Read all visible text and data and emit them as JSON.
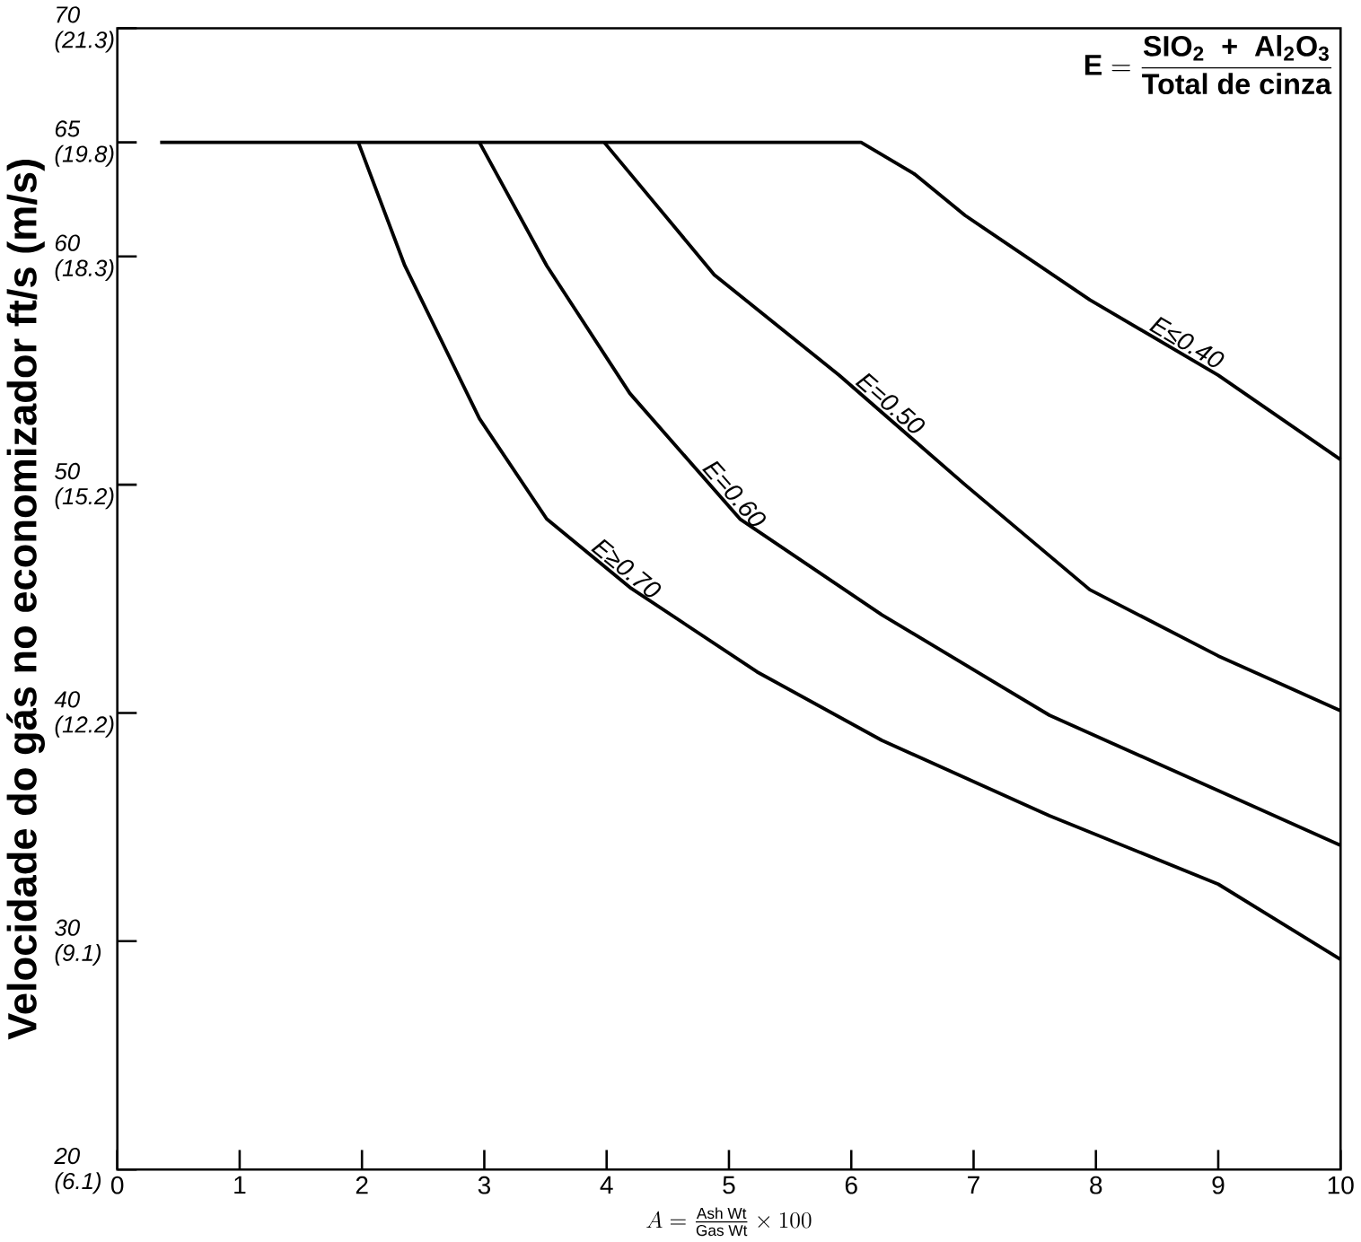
{
  "chart_data": {
    "type": "line",
    "ylabel": "Velocidade do gás no economizador ft/s (m/s)",
    "xlabel": "A = \\frac{\\text{Ash Wt}}{\\text{Gas Wt}} \\times 100",
    "annotations": [
      "\\textbf{E} = \\frac{\\textbf{SIO}_{\\textbf{2}}\\ \\ \\textbf{+}\\ \\ \\textbf{Al}_{\\textbf{2}}\\textbf{O}_{\\textbf{3}}}{\\textbf{Total de cinza}}"
    ],
    "xlim": [
      0,
      10
    ],
    "xticks": [
      0,
      1,
      2,
      3,
      4,
      5,
      6,
      7,
      8,
      9,
      10
    ],
    "ylim": [
      20,
      70
    ],
    "yticks": [
      20,
      30,
      40,
      50,
      60,
      65,
      70
    ],
    "y2lim": [
      6.096,
      21.336
    ],
    "y2ticks": [
      {
        "value": 6.096,
        "label": "(6.1)"
      },
      {
        "value": 9.144,
        "label": "(9.1)"
      },
      {
        "value": 12.192,
        "label": "(12.2)"
      },
      {
        "value": 15.24,
        "label": "(15.2)"
      },
      {
        "value": 18.288,
        "label": "(18.3)"
      },
      {
        "value": 19.812,
        "label": "(19.8)"
      },
      {
        "value": 21.336,
        "label": "(21.3)"
      }
    ],
    "line_style": "solid",
    "series": [
      {
        "name": "E≤0.40",
        "color": "#000000",
        "x": [
          0.35,
          6.08,
          6.52,
          6.93,
          7.95,
          9.0,
          10.0
        ],
        "values": [
          65,
          65,
          63.6,
          61.8,
          58.1,
          54.8,
          51.1
        ]
      },
      {
        "name": "E=0.50",
        "color": "#000000",
        "x": [
          3.98,
          4.88,
          5.9,
          6.93,
          7.95,
          9.0,
          10.0
        ],
        "values": [
          65,
          59.2,
          54.8,
          50.0,
          45.4,
          42.5,
          40.1
        ]
      },
      {
        "name": "E=0.60",
        "color": "#000000",
        "x": [
          2.96,
          3.51,
          4.19,
          5.09,
          6.25,
          7.62,
          9.0,
          10.0
        ],
        "values": [
          65,
          59.6,
          54.0,
          48.5,
          44.3,
          39.9,
          36.6,
          34.2
        ]
      },
      {
        "name": "E≥0.70",
        "color": "#000000",
        "x": [
          1.97,
          2.35,
          2.96,
          3.51,
          4.19,
          5.23,
          6.25,
          7.62,
          9.0,
          10.0
        ],
        "values": [
          65,
          59.6,
          52.9,
          48.5,
          45.5,
          41.8,
          38.8,
          35.5,
          32.5,
          29.2
        ]
      }
    ]
  }
}
